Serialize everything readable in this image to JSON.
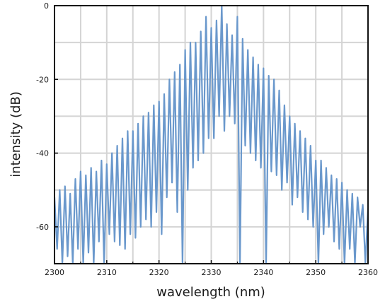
{
  "chart_data": {
    "type": "line",
    "title": "",
    "xlabel": "wavelength (nm)",
    "ylabel": "intensity (dB)",
    "xlim": [
      2300,
      2360
    ],
    "ylim": [
      -70,
      0
    ],
    "x_ticks": [
      2300,
      2310,
      2320,
      2330,
      2340,
      2350,
      2360
    ],
    "x_tick_labels": [
      "2300",
      "2310",
      "2320",
      "2330",
      "2340",
      "2350",
      "2360"
    ],
    "y_ticks": [
      0,
      -20,
      -40,
      -60
    ],
    "y_tick_labels": [
      "0",
      "-20",
      "-40",
      "-60"
    ],
    "grid": true,
    "legend": "none",
    "series": [
      {
        "color": "#6a98cc",
        "x": [
          2300.0,
          2300.5,
          2301.0,
          2301.5,
          2302.0,
          2302.5,
          2303.0,
          2303.5,
          2304.0,
          2304.5,
          2305.0,
          2305.5,
          2306.0,
          2306.5,
          2307.0,
          2307.5,
          2308.0,
          2308.5,
          2309.0,
          2309.5,
          2310.0,
          2310.5,
          2311.0,
          2311.5,
          2312.0,
          2312.5,
          2313.0,
          2313.5,
          2314.0,
          2314.5,
          2315.0,
          2315.5,
          2316.0,
          2316.5,
          2317.0,
          2317.5,
          2318.0,
          2318.5,
          2319.0,
          2319.5,
          2320.0,
          2320.5,
          2321.0,
          2321.5,
          2322.0,
          2322.5,
          2323.0,
          2323.5,
          2324.0,
          2324.5,
          2325.0,
          2325.5,
          2326.0,
          2326.5,
          2327.0,
          2327.5,
          2328.0,
          2328.5,
          2329.0,
          2329.5,
          2330.0,
          2330.5,
          2331.0,
          2331.5,
          2332.0,
          2332.5,
          2333.0,
          2333.5,
          2334.0,
          2334.5,
          2335.0,
          2335.5,
          2336.0,
          2336.5,
          2337.0,
          2337.5,
          2338.0,
          2338.5,
          2339.0,
          2339.5,
          2340.0,
          2340.5,
          2341.0,
          2341.5,
          2342.0,
          2342.5,
          2343.0,
          2343.5,
          2344.0,
          2344.5,
          2345.0,
          2345.5,
          2346.0,
          2346.5,
          2347.0,
          2347.5,
          2348.0,
          2348.5,
          2349.0,
          2349.5,
          2350.0,
          2350.5,
          2351.0,
          2351.5,
          2352.0,
          2352.5,
          2353.0,
          2353.5,
          2354.0,
          2354.5,
          2355.0,
          2355.5,
          2356.0,
          2356.5,
          2357.0,
          2357.5,
          2358.0,
          2358.5,
          2359.0,
          2359.5,
          2360.0
        ],
        "y": [
          -52,
          -66,
          -50,
          -70,
          -49,
          -68,
          -51,
          -70,
          -47,
          -66,
          -45,
          -70,
          -46,
          -67,
          -44,
          -70,
          -45,
          -64,
          -42,
          -70,
          -43,
          -62,
          -40,
          -64,
          -38,
          -65,
          -36,
          -66,
          -34,
          -62,
          -34,
          -63,
          -32,
          -60,
          -30,
          -58,
          -29,
          -60,
          -27,
          -56,
          -26,
          -62,
          -24,
          -52,
          -20,
          -48,
          -18,
          -56,
          -16,
          -70,
          -12,
          -50,
          -10,
          -44,
          -10,
          -42,
          -7,
          -40,
          -3,
          -36,
          -6,
          -36,
          -4,
          -30,
          0,
          -34,
          -5,
          -30,
          -8,
          -32,
          -3,
          -70,
          -9,
          -38,
          -12,
          -40,
          -14,
          -42,
          -16,
          -44,
          -17,
          -70,
          -19,
          -45,
          -20,
          -46,
          -23,
          -50,
          -27,
          -48,
          -30,
          -54,
          -32,
          -52,
          -34,
          -56,
          -36,
          -58,
          -38,
          -60,
          -42,
          -70,
          -42,
          -62,
          -44,
          -60,
          -46,
          -64,
          -47,
          -66,
          -48,
          -70,
          -50,
          -66,
          -51,
          -70,
          -52,
          -60,
          -54,
          -70,
          -55
        ]
      }
    ]
  }
}
